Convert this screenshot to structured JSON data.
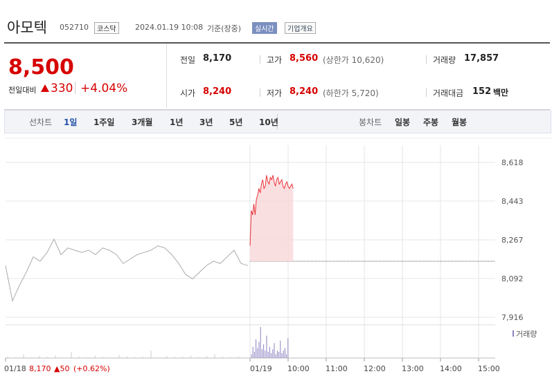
{
  "header": {
    "name": "아모텍",
    "code": "052710",
    "market": "코스닥",
    "datetime": "2024.01.19 10:08",
    "basis": "기준(장중)",
    "realtime": "실시간",
    "company": "기업개요"
  },
  "quote": {
    "price": "8,500",
    "change_label": "전일대비",
    "change": "330",
    "rate": "+4.04%"
  },
  "stats": [
    {
      "label": "전일",
      "value": "8,170"
    },
    {
      "label": "고가",
      "value": "8,560",
      "note": "(상한가 10,620)"
    },
    {
      "label": "거래량",
      "value": "17,857"
    },
    {
      "label": "시가",
      "value": "8,240"
    },
    {
      "label": "저가",
      "value": "8,240",
      "note": "(하한가 5,720)"
    },
    {
      "label": "거래대금",
      "value": "152",
      "unit": "백만"
    }
  ],
  "tabs": {
    "line_label": "선차트",
    "line_tabs": [
      "1일",
      "1주일",
      "3개월",
      "1년",
      "3년",
      "5년",
      "10년"
    ],
    "candle_label": "봉차트",
    "candle_tabs": [
      "일봉",
      "주봉",
      "월봉"
    ]
  },
  "chart_data": {
    "type": "line",
    "ylim": [
      7916,
      8618
    ],
    "yticks": [
      {
        "value": 8618,
        "label": "8,618"
      },
      {
        "value": 8443,
        "label": "8,443"
      },
      {
        "value": 8267,
        "label": "8,267"
      },
      {
        "value": 8092,
        "label": "8,092"
      },
      {
        "value": 7916,
        "label": "7,916"
      }
    ],
    "xticks": [
      "01/18",
      "01/19",
      "10:00",
      "11:00",
      "12:00",
      "13:00",
      "14:00",
      "15:00"
    ],
    "base_line": 8170,
    "series": [
      {
        "name": "01/18",
        "color": "#aaaaaa",
        "values": [
          8150,
          7990,
          8060,
          8120,
          8190,
          8170,
          8210,
          8270,
          8200,
          8230,
          8220,
          8210,
          8220,
          8200,
          8230,
          8220,
          8200,
          8160,
          8180,
          8200,
          8210,
          8220,
          8240,
          8230,
          8200,
          8160,
          8110,
          8090,
          8120,
          8150,
          8170,
          8160,
          8190,
          8220,
          8160,
          8150
        ]
      },
      {
        "name": "01/19",
        "color": "#e8333a",
        "values": [
          8240,
          8400,
          8380,
          8430,
          8380,
          8450,
          8470,
          8500,
          8480,
          8520,
          8540,
          8500,
          8510,
          8560,
          8530,
          8520,
          8550,
          8540,
          8560,
          8530,
          8510,
          8540,
          8550,
          8520,
          8530,
          8540,
          8510,
          8500,
          8520,
          8530,
          8510,
          8500,
          8510,
          8520,
          8500
        ]
      }
    ],
    "volume": {
      "name": "거래량",
      "color": "#8a7fc0",
      "vlim": [
        0,
        2500
      ],
      "prev": [
        120,
        80,
        300,
        60,
        150,
        90,
        200,
        40,
        500,
        110,
        70,
        180,
        90,
        60,
        250,
        130,
        80,
        100,
        600,
        70,
        150,
        90,
        120,
        200,
        80,
        160,
        300,
        110,
        90,
        140
      ],
      "today": [
        300,
        900,
        500,
        1500,
        800,
        1300,
        2500,
        700,
        1100,
        600,
        1800,
        500,
        900,
        400,
        700,
        1200,
        300,
        600,
        500,
        1400,
        400,
        600,
        800,
        300,
        1600
      ]
    },
    "footer": {
      "date": "01/18",
      "price": "8,170",
      "change": "▲50",
      "rate": "(+0.62%)"
    }
  }
}
